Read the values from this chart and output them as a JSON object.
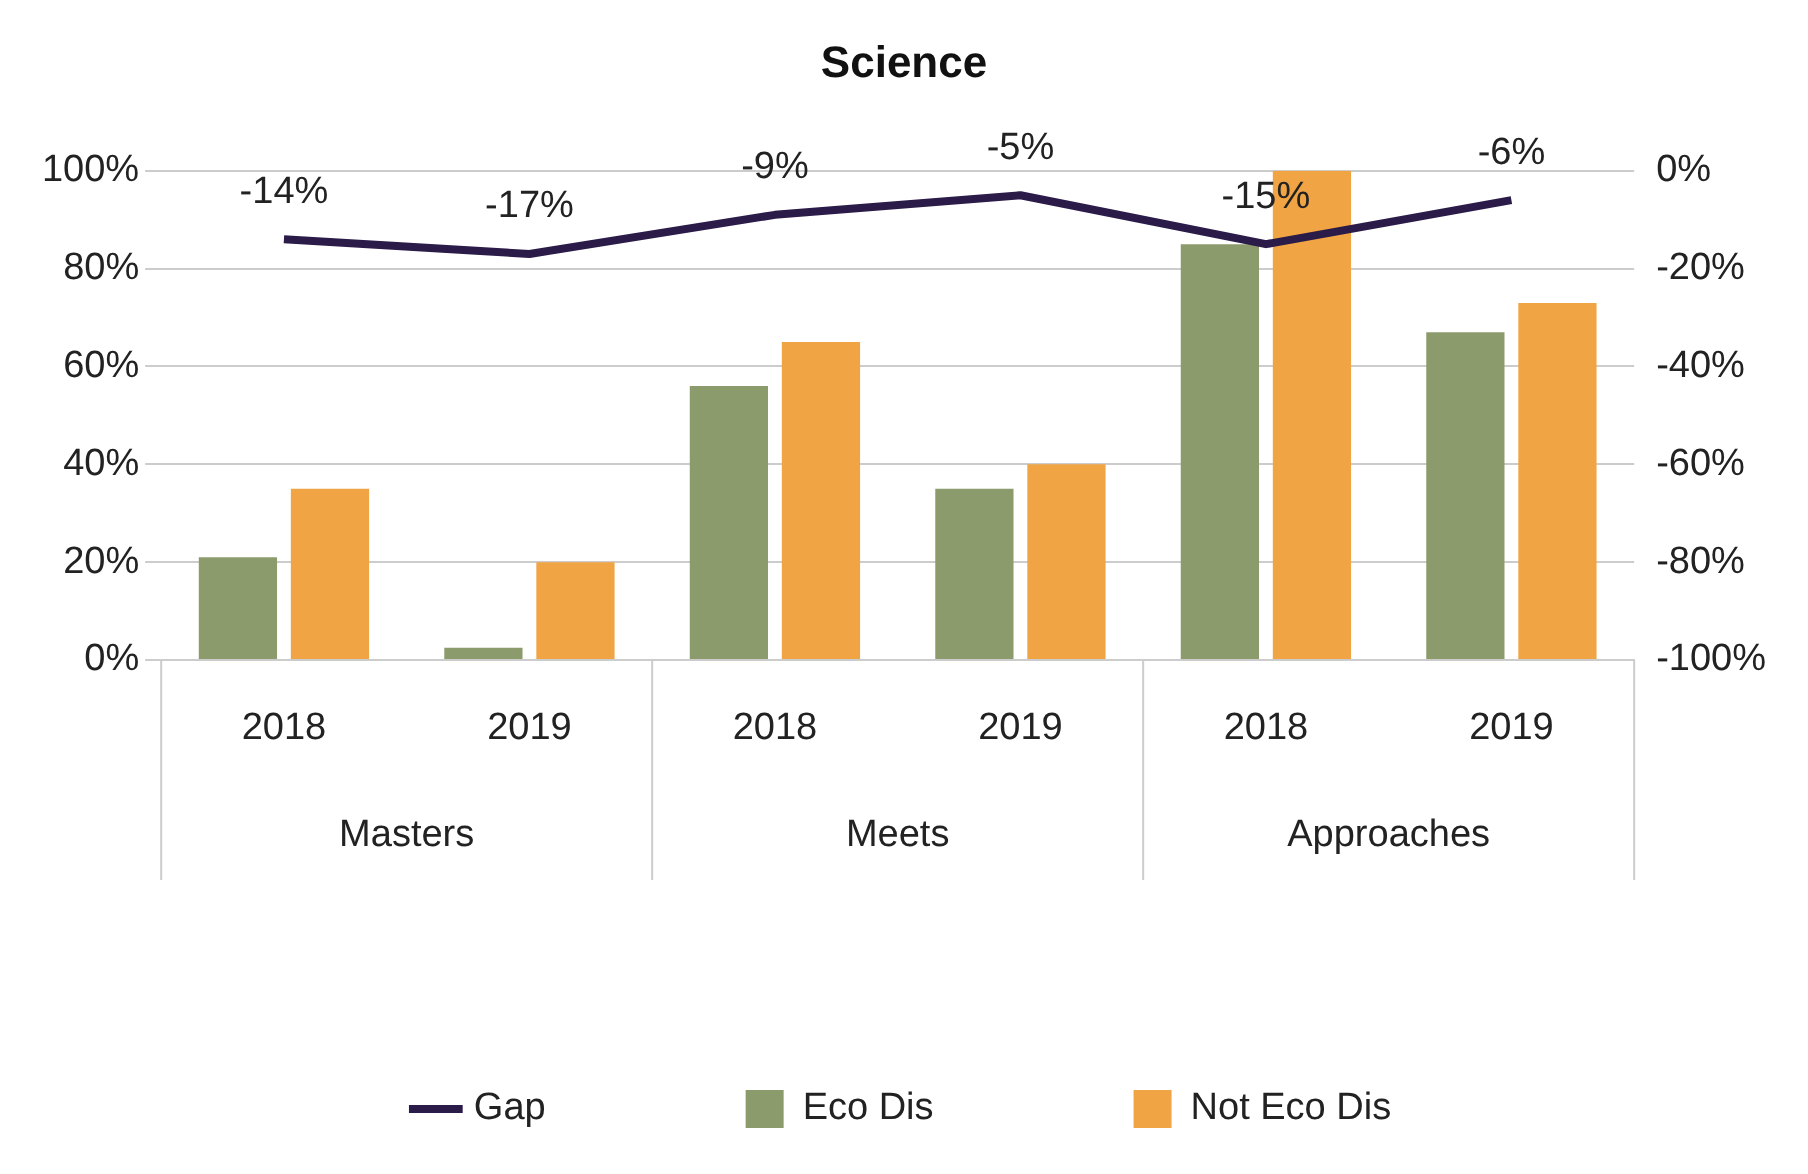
{
  "chart_data": {
    "type": "bar",
    "title": "Science",
    "categories": [
      "2018",
      "2019",
      "2018",
      "2019",
      "2018",
      "2019"
    ],
    "annotations": [
      "Masters",
      "Meets",
      "Approaches"
    ],
    "series": [
      {
        "name": "Eco Dis",
        "color": "#8c9b6c",
        "values": [
          21,
          2.5,
          56,
          35,
          85,
          67
        ]
      },
      {
        "name": "Not Eco Dis",
        "color": "#f0a443",
        "values": [
          35,
          20,
          65,
          40,
          100,
          73
        ]
      },
      {
        "name": "Gap",
        "type": "line",
        "axis": "y2",
        "color": "#2b1b48",
        "values": [
          -14,
          -17,
          -9,
          -5,
          -15,
          -6
        ],
        "value_labels": [
          "-14%",
          "-17%",
          "-9%",
          "-5%",
          "-15%",
          "-6%"
        ]
      }
    ],
    "ylim": [
      0,
      100
    ],
    "yticks": [
      {
        "value": 0,
        "label": "0%"
      },
      {
        "value": 20,
        "label": "20%"
      },
      {
        "value": 40,
        "label": "40%"
      },
      {
        "value": 60,
        "label": "60%"
      },
      {
        "value": 80,
        "label": "80%"
      },
      {
        "value": 100,
        "label": "100%"
      }
    ],
    "y2lim": [
      -100,
      0
    ],
    "y2ticks": [
      {
        "value": -100,
        "label": "-100%"
      },
      {
        "value": -80,
        "label": "-80%"
      },
      {
        "value": -60,
        "label": "-60%"
      },
      {
        "value": -40,
        "label": "-40%"
      },
      {
        "value": -20,
        "label": "-20%"
      },
      {
        "value": 0,
        "label": "0%"
      }
    ],
    "grid": "y",
    "legend": "bottom",
    "marker": "none"
  }
}
